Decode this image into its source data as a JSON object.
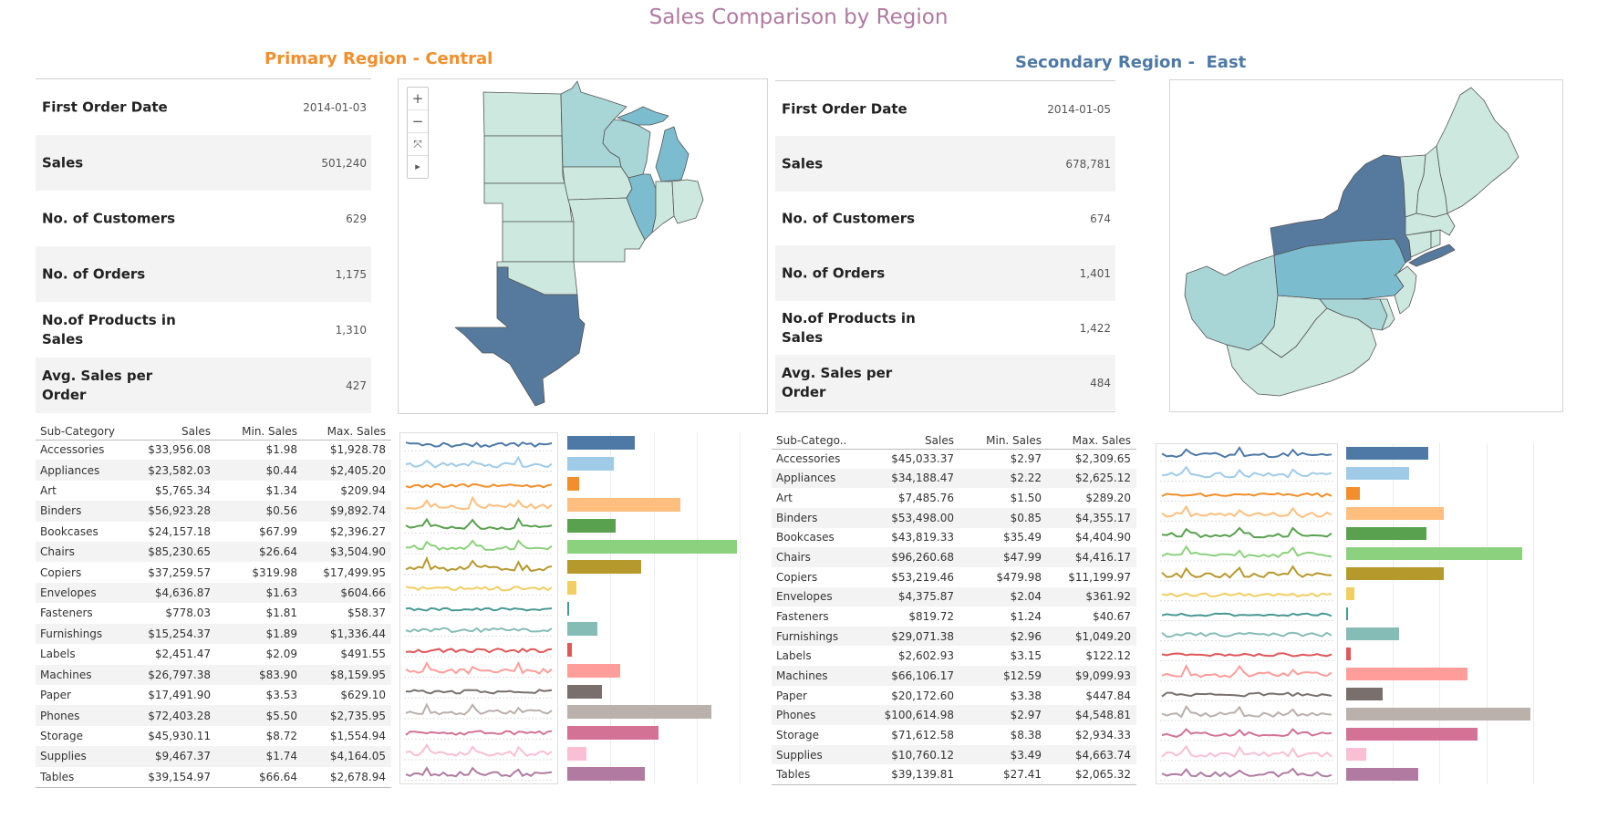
{
  "title": "Sales Comparison by Region",
  "title_color": "#b07aa1",
  "map_controls": {
    "zoom_in": "+",
    "zoom_out": "−",
    "reset": "⤧",
    "expand": "▸"
  },
  "panels": [
    {
      "heading": "Primary Region - Central",
      "heading_color": "#f28e2b",
      "kpis": [
        {
          "label": "First Order Date",
          "value": "2014-01-03"
        },
        {
          "label": "Sales",
          "value": "501,240"
        },
        {
          "label": "No. of Customers",
          "value": "629"
        },
        {
          "label": "No. of Orders",
          "value": "1,175"
        },
        {
          "label": "No.of Products in Sales",
          "value": "1,310"
        },
        {
          "label": "Avg. Sales per Order",
          "value": "427"
        }
      ],
      "table": {
        "columns": [
          "Sub-Category",
          "Sales",
          "Min. Sales",
          "Max. Sales"
        ],
        "rows": [
          [
            "Accessories",
            "$33,956.08",
            "$1.98",
            "$1,928.78"
          ],
          [
            "Appliances",
            "$23,582.03",
            "$0.44",
            "$2,405.20"
          ],
          [
            "Art",
            "$5,765.34",
            "$1.34",
            "$209.94"
          ],
          [
            "Binders",
            "$56,923.28",
            "$0.56",
            "$9,892.74"
          ],
          [
            "Bookcases",
            "$24,157.18",
            "$67.99",
            "$2,396.27"
          ],
          [
            "Chairs",
            "$85,230.65",
            "$26.64",
            "$3,504.90"
          ],
          [
            "Copiers",
            "$37,259.57",
            "$319.98",
            "$17,499.95"
          ],
          [
            "Envelopes",
            "$4,636.87",
            "$1.63",
            "$604.66"
          ],
          [
            "Fasteners",
            "$778.03",
            "$1.81",
            "$58.37"
          ],
          [
            "Furnishings",
            "$15,254.37",
            "$1.89",
            "$1,336.44"
          ],
          [
            "Labels",
            "$2,451.47",
            "$2.09",
            "$491.55"
          ],
          [
            "Machines",
            "$26,797.38",
            "$83.90",
            "$8,159.95"
          ],
          [
            "Paper",
            "$17,491.90",
            "$3.53",
            "$629.10"
          ],
          [
            "Phones",
            "$72,403.28",
            "$5.50",
            "$2,735.95"
          ],
          [
            "Storage",
            "$45,930.11",
            "$8.72",
            "$1,554.94"
          ],
          [
            "Supplies",
            "$9,467.37",
            "$1.74",
            "$4,164.05"
          ],
          [
            "Tables",
            "$39,154.97",
            "$66.64",
            "$2,678.94"
          ]
        ]
      },
      "bar_max": 85230.65
    },
    {
      "heading": "Secondary Region -  East",
      "heading_color": "#4e79a7",
      "kpis": [
        {
          "label": "First Order Date",
          "value": "2014-01-05"
        },
        {
          "label": "Sales",
          "value": "678,781"
        },
        {
          "label": "No. of Customers",
          "value": "674"
        },
        {
          "label": "No. of Orders",
          "value": "1,401"
        },
        {
          "label": "No.of Products in Sales",
          "value": "1,422"
        },
        {
          "label": "Avg. Sales per Order",
          "value": "484"
        }
      ],
      "table": {
        "columns": [
          "Sub-Catego..",
          "Sales",
          "Min. Sales",
          "Max. Sales"
        ],
        "rows": [
          [
            "Accessories",
            "$45,033.37",
            "$2.97",
            "$2,309.65"
          ],
          [
            "Appliances",
            "$34,188.47",
            "$2.22",
            "$2,625.12"
          ],
          [
            "Art",
            "$7,485.76",
            "$1.50",
            "$289.20"
          ],
          [
            "Binders",
            "$53,498.00",
            "$0.85",
            "$4,355.17"
          ],
          [
            "Bookcases",
            "$43,819.33",
            "$35.49",
            "$4,404.90"
          ],
          [
            "Chairs",
            "$96,260.68",
            "$47.99",
            "$4,416.17"
          ],
          [
            "Copiers",
            "$53,219.46",
            "$479.98",
            "$11,199.97"
          ],
          [
            "Envelopes",
            "$4,375.87",
            "$2.04",
            "$361.92"
          ],
          [
            "Fasteners",
            "$819.72",
            "$1.24",
            "$40.67"
          ],
          [
            "Furnishings",
            "$29,071.38",
            "$2.96",
            "$1,049.20"
          ],
          [
            "Labels",
            "$2,602.93",
            "$3.15",
            "$122.12"
          ],
          [
            "Machines",
            "$66,106.17",
            "$12.59",
            "$9,099.93"
          ],
          [
            "Paper",
            "$20,172.60",
            "$3.38",
            "$447.84"
          ],
          [
            "Phones",
            "$100,614.98",
            "$2.97",
            "$4,548.81"
          ],
          [
            "Storage",
            "$71,612.58",
            "$8.38",
            "$2,934.33"
          ],
          [
            "Supplies",
            "$10,760.12",
            "$3.49",
            "$4,663.74"
          ],
          [
            "Tables",
            "$39,139.81",
            "$27.41",
            "$2,065.32"
          ]
        ]
      },
      "bar_max": 100614.98
    }
  ],
  "category_colors": [
    "#4e79a7",
    "#a0cbe8",
    "#f28e2b",
    "#ffbe7d",
    "#59a14f",
    "#8cd17d",
    "#b6992d",
    "#f1ce63",
    "#499894",
    "#86bcb6",
    "#e15759",
    "#ff9d9a",
    "#79706e",
    "#bab0ac",
    "#d37295",
    "#fabfd2",
    "#b07aa1"
  ],
  "map_colors": {
    "light": "#cce8df",
    "mid": "#a8d5d6",
    "blue": "#7cbccf",
    "dark": "#557a9e",
    "border": "#555555"
  }
}
